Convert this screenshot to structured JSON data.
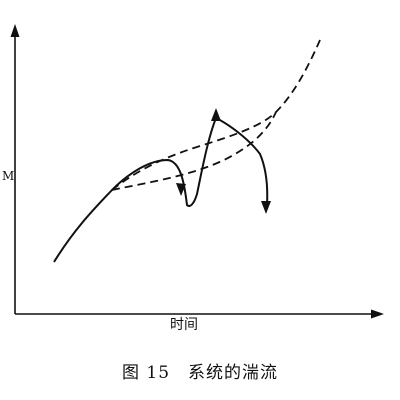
{
  "figure": {
    "x_axis_label": "时间",
    "y_axis_label": "M",
    "caption_number": "图 15",
    "caption_title": "系统的湍流"
  }
}
